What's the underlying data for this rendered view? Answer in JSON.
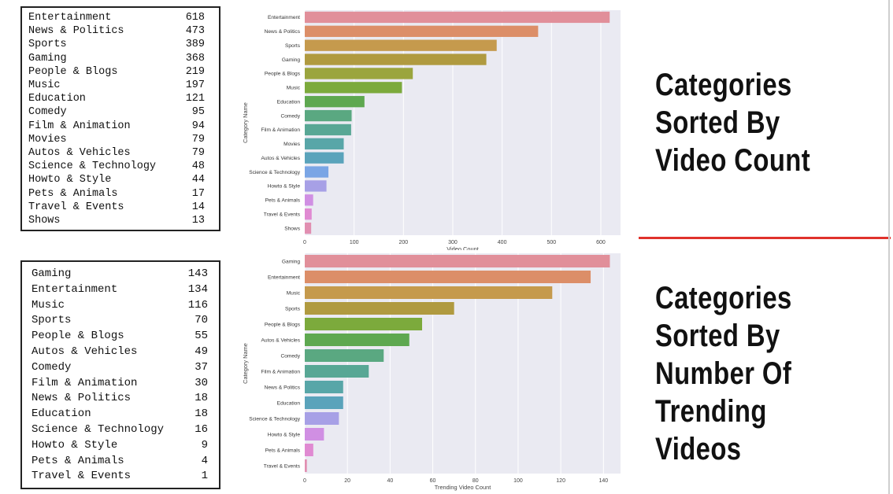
{
  "table_top": {
    "rows": [
      {
        "name": "Entertainment",
        "value": "618"
      },
      {
        "name": "News & Politics",
        "value": "473"
      },
      {
        "name": "Sports",
        "value": "389"
      },
      {
        "name": "Gaming",
        "value": "368"
      },
      {
        "name": "People & Blogs",
        "value": "219"
      },
      {
        "name": "Music",
        "value": "197"
      },
      {
        "name": "Education",
        "value": "121"
      },
      {
        "name": "Comedy",
        "value": "95"
      },
      {
        "name": "Film & Animation",
        "value": "94"
      },
      {
        "name": "Movies",
        "value": "79"
      },
      {
        "name": "Autos & Vehicles",
        "value": "79"
      },
      {
        "name": "Science & Technology",
        "value": "48"
      },
      {
        "name": "Howto & Style",
        "value": "44"
      },
      {
        "name": "Pets & Animals",
        "value": "17"
      },
      {
        "name": "Travel & Events",
        "value": "14"
      },
      {
        "name": "Shows",
        "value": "13"
      }
    ]
  },
  "table_bottom": {
    "rows": [
      {
        "name": "Gaming",
        "value": "143"
      },
      {
        "name": "Entertainment",
        "value": "134"
      },
      {
        "name": "Music",
        "value": "116"
      },
      {
        "name": "Sports",
        "value": "70"
      },
      {
        "name": "People & Blogs",
        "value": "55"
      },
      {
        "name": "Autos & Vehicles",
        "value": "49"
      },
      {
        "name": "Comedy",
        "value": "37"
      },
      {
        "name": "Film & Animation",
        "value": "30"
      },
      {
        "name": "News & Politics",
        "value": "18"
      },
      {
        "name": "Education",
        "value": "18"
      },
      {
        "name": "Science & Technology",
        "value": "16"
      },
      {
        "name": "Howto & Style",
        "value": "9"
      },
      {
        "name": "Pets & Animals",
        "value": "4"
      },
      {
        "name": "Travel & Events",
        "value": "1"
      }
    ]
  },
  "headings": {
    "top": "Categories\nSorted By\nVideo Count",
    "bottom": "Categories\nSorted  By\nNumber Of\nTrending\nVideos"
  },
  "colors": {
    "plot_background": "#eaeaf2",
    "divider": "#e0322b",
    "palette": [
      "#e18f9a",
      "#dc8e68",
      "#c59a4d",
      "#b09a40",
      "#9ba53e",
      "#7caa3c",
      "#5ea850",
      "#5aa881",
      "#58a795",
      "#58a6a8",
      "#5aa3bb",
      "#7aa5e5",
      "#a7a0e6",
      "#d08fe3",
      "#e08ad2",
      "#e18fb1"
    ]
  },
  "chart_data": [
    {
      "type": "bar",
      "orientation": "horizontal",
      "categories": [
        "Entertainment",
        "News & Politics",
        "Sports",
        "Gaming",
        "People & Blogs",
        "Music",
        "Education",
        "Comedy",
        "Film & Animation",
        "Movies",
        "Autos & Vehicles",
        "Science & Technology",
        "Howto & Style",
        "Pets & Animals",
        "Travel & Events",
        "Shows"
      ],
      "values": [
        618,
        473,
        389,
        368,
        219,
        197,
        121,
        95,
        94,
        79,
        79,
        48,
        44,
        17,
        14,
        13
      ],
      "xlabel": "Video Count",
      "ylabel": "Category Name",
      "xlim": [
        0,
        640
      ],
      "xticks": [
        0,
        100,
        200,
        300,
        400,
        500,
        600
      ],
      "grid": true
    },
    {
      "type": "bar",
      "orientation": "horizontal",
      "categories": [
        "Gaming",
        "Entertainment",
        "Music",
        "Sports",
        "People & Blogs",
        "Autos & Vehicles",
        "Comedy",
        "Film & Animation",
        "News & Politics",
        "Education",
        "Science & Technology",
        "Howto & Style",
        "Pets & Animals",
        "Travel & Events"
      ],
      "values": [
        143,
        134,
        116,
        70,
        55,
        49,
        37,
        30,
        18,
        18,
        16,
        9,
        4,
        1
      ],
      "xlabel": "Trending Video Count",
      "ylabel": "Category Name",
      "xlim": [
        0,
        148
      ],
      "xticks": [
        0,
        20,
        40,
        60,
        80,
        100,
        120,
        140
      ],
      "grid": true
    }
  ]
}
